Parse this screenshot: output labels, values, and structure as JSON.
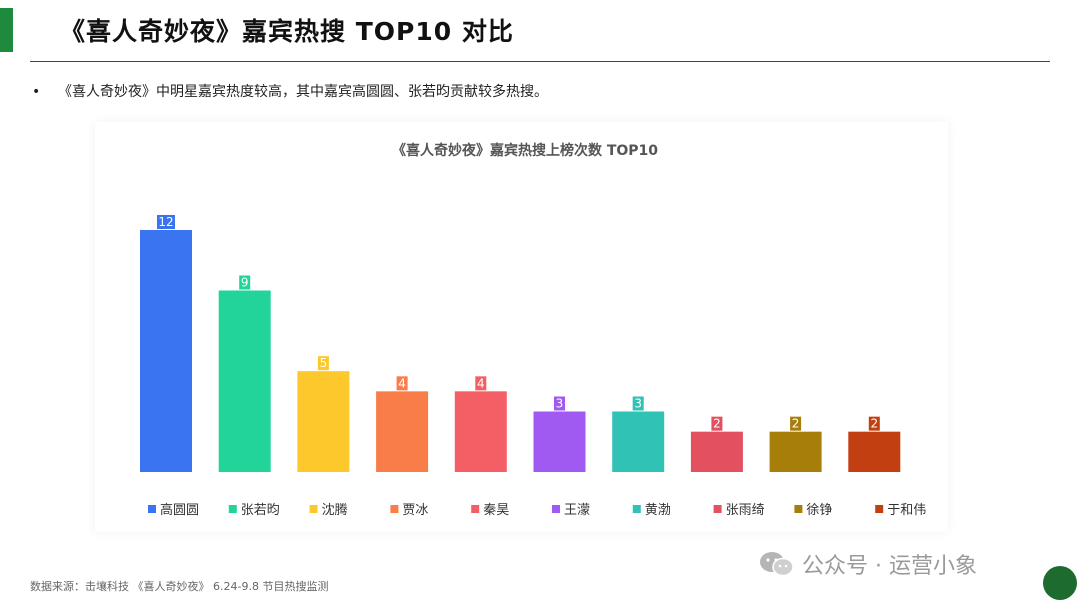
{
  "header": {
    "title": "《喜人奇妙夜》嘉宾热搜 TOP10 对比",
    "bullet": "《喜人奇妙夜》中明星嘉宾热度较高，其中嘉宾高圆圆、张若昀贡献较多热搜。"
  },
  "footer": {
    "source": "数据来源：击壤科技 《喜人奇妙夜》 6.24-9.8 节目热搜监测",
    "watermark": "公众号 · 运营小象"
  },
  "colors": {
    "accent": "#1e8a3c",
    "bars": [
      "#3b74f0",
      "#22d39a",
      "#fcc82b",
      "#f97d48",
      "#f35f64",
      "#a05af2",
      "#2fc2b5",
      "#e3505f",
      "#a87e0b",
      "#c23f12"
    ]
  },
  "chart_data": {
    "type": "bar",
    "title": "《喜人奇妙夜》嘉宾热搜上榜次数 TOP10",
    "categories": [
      "高圆圆",
      "张若昀",
      "沈腾",
      "贾冰",
      "秦昊",
      "王濛",
      "黄渤",
      "张雨绮",
      "徐铮",
      "于和伟"
    ],
    "values": [
      12,
      9,
      5,
      4,
      4,
      3,
      3,
      2,
      2,
      2
    ],
    "ylim": [
      0,
      12
    ],
    "grid": false,
    "legend": "bottom",
    "data_labels": true
  }
}
